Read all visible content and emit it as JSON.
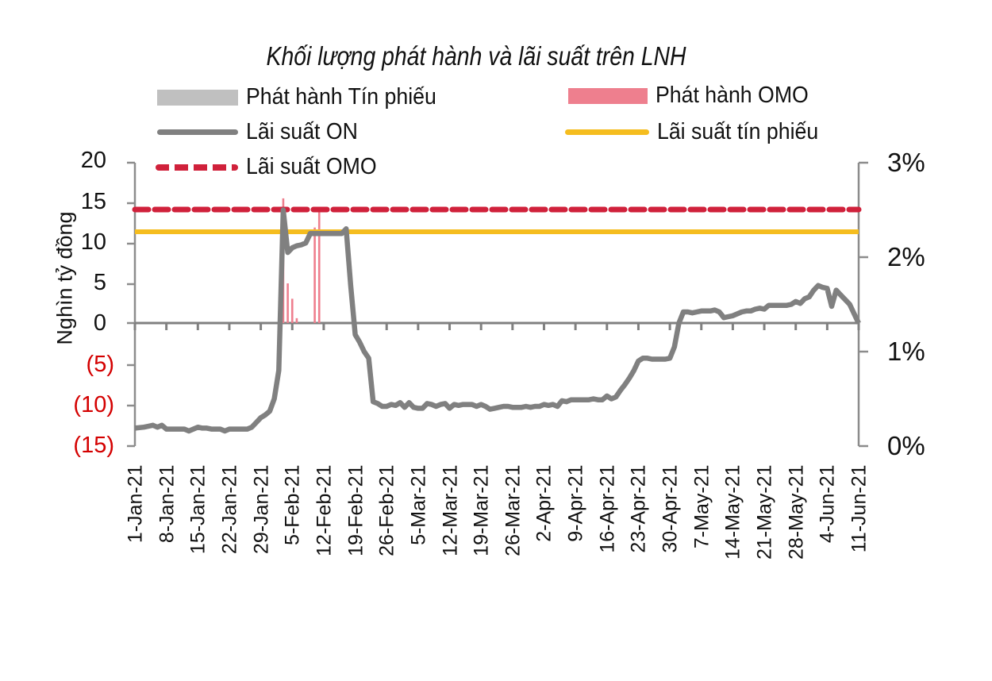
{
  "chart_data": {
    "type": "bar+line",
    "title": "Khối lượng phát hành và lãi suất trên LNH",
    "ylabel": "Nghìn tỷ đồng",
    "ylabel_right": "",
    "xlabel": "",
    "ylim": [
      -15,
      20
    ],
    "ylim_right": [
      0,
      3
    ],
    "y_ticks": [
      "20",
      "15",
      "10",
      "5",
      "0",
      "(5)",
      "(10)",
      "(15)"
    ],
    "y_tick_values": [
      20,
      15,
      10,
      5,
      0,
      -5,
      -10,
      -15
    ],
    "y_right_ticks": [
      "3%",
      "2%",
      "1%",
      "0%"
    ],
    "y_right_tick_values": [
      3,
      2,
      1,
      0
    ],
    "categories": [
      "1-Jan-21",
      "8-Jan-21",
      "15-Jan-21",
      "22-Jan-21",
      "29-Jan-21",
      "5-Feb-21",
      "12-Feb-21",
      "19-Feb-21",
      "26-Feb-21",
      "5-Mar-21",
      "12-Mar-21",
      "19-Mar-21",
      "26-Mar-21",
      "2-Apr-21",
      "9-Apr-21",
      "16-Apr-21",
      "23-Apr-21",
      "30-Apr-21",
      "7-May-21",
      "14-May-21",
      "21-May-21",
      "28-May-21",
      "4-Jun-21",
      "11-Jun-21"
    ],
    "legend": [
      {
        "name": "Phát hành Tín phiếu",
        "type": "bar",
        "color": "#c0c0c0"
      },
      {
        "name": "Phát hành OMO",
        "type": "bar",
        "color": "#ee7f8e"
      },
      {
        "name": "Lãi suất ON",
        "type": "line",
        "color": "#808080",
        "axis": "right"
      },
      {
        "name": "Lãi suất tín phiếu",
        "type": "line",
        "color": "#f5bd1f",
        "axis": "right"
      },
      {
        "name": "Lãi suất OMO",
        "type": "dashed-line",
        "color": "#d0213b",
        "axis": "right"
      }
    ],
    "series": [
      {
        "name": "Phát hành OMO",
        "type": "bar",
        "axis": "left",
        "points": [
          {
            "date": "3-Feb-21",
            "value": 15.4
          },
          {
            "date": "4-Feb-21",
            "value": 4.9
          },
          {
            "date": "5-Feb-21",
            "value": 3.0
          },
          {
            "date": "6-Feb-21",
            "value": 0.6
          },
          {
            "date": "10-Feb-21",
            "value": 11.8
          },
          {
            "date": "11-Feb-21",
            "value": 14.0
          }
        ]
      },
      {
        "name": "Phát hành Tín phiếu",
        "type": "bar",
        "axis": "left",
        "points": []
      },
      {
        "name": "Lãi suất OMO",
        "type": "line",
        "axis": "right",
        "constant": 2.5
      },
      {
        "name": "Lãi suất tín phiếu",
        "type": "line",
        "axis": "right",
        "constant": 2.25
      },
      {
        "name": "Lãi suất ON",
        "type": "line",
        "axis": "right",
        "x_day": [
          0,
          2,
          3,
          4,
          5,
          6,
          7,
          8,
          9,
          10,
          11,
          12,
          13,
          14,
          15,
          16,
          17,
          18,
          19,
          20,
          21,
          22,
          23,
          24,
          25,
          26,
          27,
          28,
          29,
          30,
          31,
          32,
          33,
          34,
          35,
          36,
          37,
          38,
          39,
          40,
          41,
          42,
          43,
          44,
          45,
          46,
          47,
          48,
          49,
          50,
          51,
          52,
          53,
          54,
          55,
          56,
          57,
          58,
          59,
          60,
          61,
          62,
          63,
          64,
          65,
          66,
          67,
          68,
          69,
          70,
          71,
          72,
          73,
          74,
          75,
          76,
          77,
          78,
          79,
          80,
          81,
          82,
          83,
          84,
          85,
          86,
          87,
          88,
          89,
          90,
          91,
          92,
          93,
          94,
          95,
          96,
          97,
          98,
          99,
          100,
          101,
          102,
          103,
          104,
          105,
          106,
          107,
          108,
          109,
          110,
          111,
          112,
          113,
          114,
          115,
          116,
          117,
          118,
          119,
          120,
          121,
          122,
          123,
          124,
          125,
          126,
          127,
          128,
          129,
          130,
          131,
          132,
          133,
          134,
          135,
          136,
          137,
          138,
          139,
          140,
          141,
          142,
          143,
          144,
          145,
          146,
          147,
          148,
          149,
          150,
          151,
          152,
          153,
          154,
          155,
          156,
          157,
          158,
          159,
          160,
          161
        ],
        "values": [
          0.19,
          0.2,
          0.21,
          0.22,
          0.2,
          0.22,
          0.18,
          0.18,
          0.18,
          0.18,
          0.18,
          0.16,
          0.18,
          0.2,
          0.19,
          0.19,
          0.18,
          0.18,
          0.18,
          0.16,
          0.18,
          0.18,
          0.18,
          0.18,
          0.18,
          0.2,
          0.25,
          0.3,
          0.33,
          0.37,
          0.5,
          0.8,
          2.5,
          2.05,
          2.1,
          2.12,
          2.13,
          2.15,
          2.25,
          2.25,
          2.25,
          2.25,
          2.25,
          2.25,
          2.25,
          2.25,
          2.3,
          1.7,
          1.18,
          1.1,
          1.0,
          0.93,
          0.47,
          0.45,
          0.42,
          0.42,
          0.44,
          0.43,
          0.46,
          0.41,
          0.46,
          0.41,
          0.4,
          0.4,
          0.45,
          0.44,
          0.42,
          0.44,
          0.45,
          0.4,
          0.44,
          0.43,
          0.44,
          0.44,
          0.44,
          0.42,
          0.44,
          0.42,
          0.39,
          0.4,
          0.41,
          0.42,
          0.42,
          0.41,
          0.41,
          0.41,
          0.42,
          0.41,
          0.42,
          0.42,
          0.44,
          0.43,
          0.44,
          0.42,
          0.48,
          0.47,
          0.49,
          0.49,
          0.49,
          0.49,
          0.49,
          0.5,
          0.49,
          0.49,
          0.53,
          0.5,
          0.52,
          0.59,
          0.65,
          0.72,
          0.8,
          0.9,
          0.93,
          0.93,
          0.92,
          0.92,
          0.92,
          0.92,
          0.93,
          1.05,
          1.3,
          1.42,
          1.42,
          1.41,
          1.42,
          1.43,
          1.43,
          1.43,
          1.44,
          1.42,
          1.36,
          1.37,
          1.38,
          1.4,
          1.42,
          1.43,
          1.43,
          1.45,
          1.46,
          1.45,
          1.49,
          1.49,
          1.49,
          1.49,
          1.49,
          1.5,
          1.53,
          1.51,
          1.56,
          1.58,
          1.65,
          1.7,
          1.68,
          1.67,
          1.48,
          1.65,
          1.6,
          1.55,
          1.5,
          1.4,
          1.3,
          1.28,
          1.26,
          1.27,
          1.27
        ]
      }
    ],
    "grid": false,
    "legend_position": "top"
  },
  "title": "Khối lượng phát hành và lãi suất trên LNH",
  "legend": {
    "tin_phieu": "Phát hành  Tín phiếu",
    "omo_issue": "Phát hành OMO",
    "on_rate": "Lãi suất ON",
    "tp_rate": "Lãi suất tín phiếu",
    "omo_rate": "Lãi suất OMO"
  },
  "axes": {
    "ylabel": "Nghìn tỷ đồng",
    "left_ticks": [
      "20",
      "15",
      "10",
      "5",
      "0",
      "(5)",
      "(10)",
      "(15)"
    ],
    "right_ticks": [
      "3%",
      "2%",
      "1%",
      "0%"
    ],
    "x_ticks": [
      "1-Jan-21",
      "8-Jan-21",
      "15-Jan-21",
      "22-Jan-21",
      "29-Jan-21",
      "5-Feb-21",
      "12-Feb-21",
      "19-Feb-21",
      "26-Feb-21",
      "5-Mar-21",
      "12-Mar-21",
      "19-Mar-21",
      "26-Mar-21",
      "2-Apr-21",
      "9-Apr-21",
      "16-Apr-21",
      "23-Apr-21",
      "30-Apr-21",
      "7-May-21",
      "14-May-21",
      "21-May-21",
      "28-May-21",
      "4-Jun-21",
      "11-Jun-21"
    ]
  },
  "colors": {
    "axis": "#8c8c8c",
    "on_line": "#808080",
    "tp_line": "#f5bd1f",
    "omo_line": "#d0213b",
    "omo_bar": "#ee7f8e",
    "tp_bar": "#c0c0c0",
    "negative_tick": "#d40000"
  }
}
